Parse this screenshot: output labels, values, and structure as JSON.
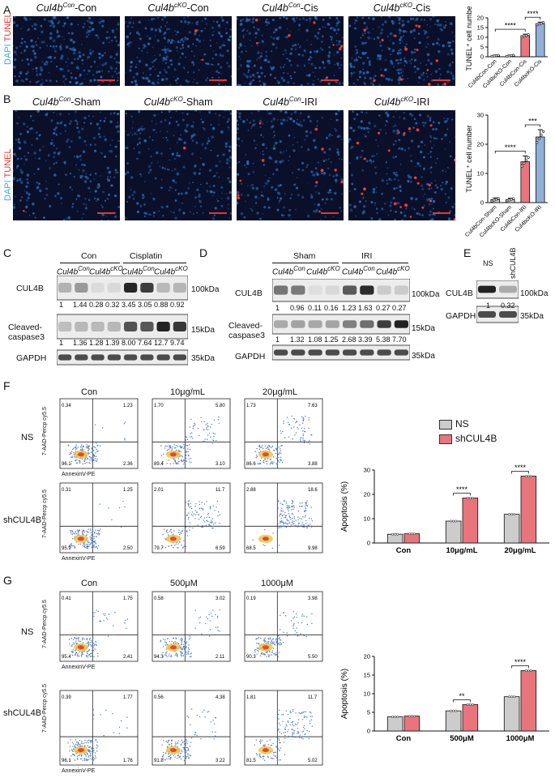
{
  "panels": {
    "A": "A",
    "B": "B",
    "C": "C",
    "D": "D",
    "E": "E",
    "F": "F",
    "G": "G"
  },
  "channels": {
    "dapi": "DAPI",
    "tunel": "TUNEL"
  },
  "panelA": {
    "titles": [
      {
        "base": "Cul4b",
        "sup": "Con",
        "suffix": "-Con"
      },
      {
        "base": "Cul4b",
        "sup": "cKO",
        "suffix": "-Con"
      },
      {
        "base": "Cul4b",
        "sup": "Con",
        "suffix": "-Cis"
      },
      {
        "base": "Cul4b",
        "sup": "cKO",
        "suffix": "-Cis"
      }
    ]
  },
  "panelB": {
    "titles": [
      {
        "base": "Cul4b",
        "sup": "Con",
        "suffix": "-Sham"
      },
      {
        "base": "Cul4b",
        "sup": "cKO",
        "suffix": "-Sham"
      },
      {
        "base": "Cul4b",
        "sup": "Con",
        "suffix": "-IRI"
      },
      {
        "base": "Cul4b",
        "sup": "cKO",
        "suffix": "-IRI"
      }
    ]
  },
  "chart_data": [
    {
      "type": "bar",
      "panel": "A",
      "ylabel": "TUNEL⁺ cell number",
      "ylim": [
        0,
        20
      ],
      "yticks": [
        0,
        5,
        10,
        15,
        20
      ],
      "categories": [
        "Cul4bCon-Con",
        "Cul4bcKO-Con",
        "Cul4bCon-Cis",
        "Cul4bcKO-Cis"
      ],
      "values": [
        0.5,
        0.5,
        10.8,
        17.0
      ],
      "errors": [
        0.3,
        0.4,
        0.8,
        0.8
      ],
      "colors": [
        "#cccccc",
        "#cccccc",
        "#e8747c",
        "#8fb0d8"
      ],
      "sig": [
        {
          "from": 0,
          "to": 2,
          "label": "****"
        },
        {
          "from": 2,
          "to": 3,
          "label": "****"
        }
      ]
    },
    {
      "type": "bar",
      "panel": "B",
      "ylabel": "TUNEL⁺ cell number",
      "ylim": [
        0,
        30
      ],
      "yticks": [
        0,
        10,
        20,
        30
      ],
      "categories": [
        "Cul4bCon-Sham",
        "Cul4bcKO-Sham",
        "Cul4bCon-IRI",
        "Cul4bcKO-IRI"
      ],
      "values": [
        1.0,
        1.0,
        14.0,
        22.5
      ],
      "errors": [
        0.6,
        0.5,
        2.0,
        2.5
      ],
      "colors": [
        "#cccccc",
        "#cccccc",
        "#e8747c",
        "#8fb0d8"
      ],
      "sig": [
        {
          "from": 0,
          "to": 2,
          "label": "****"
        },
        {
          "from": 2,
          "to": 3,
          "label": "***"
        }
      ]
    },
    {
      "type": "bar",
      "panel": "F",
      "ylabel": "Apoptosis (%)",
      "ylim": [
        0,
        30
      ],
      "yticks": [
        0,
        10,
        20,
        30
      ],
      "categories": [
        "Con",
        "10μg/mL",
        "20μg/mL"
      ],
      "series": [
        {
          "name": "NS",
          "values": [
            3.6,
            9.0,
            11.8
          ],
          "color": "#cccccc"
        },
        {
          "name": "shCUL4B",
          "values": [
            3.8,
            18.5,
            27.5
          ],
          "color": "#e8747c"
        }
      ],
      "sig": [
        {
          "cat": 1,
          "label": "****"
        },
        {
          "cat": 2,
          "label": "****"
        }
      ]
    },
    {
      "type": "bar",
      "panel": "G",
      "ylabel": "Apoptosis (%)",
      "ylim": [
        0,
        20
      ],
      "yticks": [
        0,
        5,
        10,
        15,
        20
      ],
      "categories": [
        "Con",
        "500μM",
        "1000μM"
      ],
      "series": [
        {
          "name": "NS",
          "values": [
            3.8,
            5.4,
            9.2
          ],
          "color": "#cccccc"
        },
        {
          "name": "shCUL4B",
          "values": [
            4.0,
            7.1,
            16.2
          ],
          "color": "#e8747c"
        }
      ],
      "sig": [
        {
          "cat": 1,
          "label": "**"
        },
        {
          "cat": 2,
          "label": "****"
        }
      ]
    }
  ],
  "panelC": {
    "groups": [
      "Con",
      "Cisplatin"
    ],
    "sub": [
      {
        "base": "Cul4b",
        "sup": "Con"
      },
      {
        "base": "Cul4b",
        "sup": "cKO"
      },
      {
        "base": "Cul4b",
        "sup": "Con"
      },
      {
        "base": "Cul4b",
        "sup": "cKO"
      }
    ],
    "rows": [
      "CUL4B",
      "Cleaved-\ncaspase3",
      "GAPDH"
    ],
    "kda": [
      "100kDa",
      "15kDa",
      "35kDa"
    ],
    "q1": [
      "1",
      "1.44",
      "0.28",
      "0.32",
      "3.45",
      "3.05",
      "0.88",
      "0.92"
    ],
    "q2": [
      "1",
      "1.36",
      "1.28",
      "1.39",
      "8.00",
      "7.64",
      "12.7",
      "9.74"
    ]
  },
  "panelD": {
    "groups": [
      "Sham",
      "IRI"
    ],
    "sub": [
      {
        "base": "Cul4b",
        "sup": "Con"
      },
      {
        "base": "Cul4b",
        "sup": "cKO"
      },
      {
        "base": "Cul4b",
        "sup": "Con"
      },
      {
        "base": "Cul4b",
        "sup": "cKO"
      }
    ],
    "rows": [
      "CUL4B",
      "Cleaved-\ncaspase3",
      "GAPDH"
    ],
    "kda": [
      "100kDa",
      "15kDa",
      "35kDa"
    ],
    "q1": [
      "1",
      "0.96",
      "0.11",
      "0.16",
      "1.23",
      "1.63",
      "0.27",
      "0.27"
    ],
    "q2": [
      "1",
      "1.32",
      "1.08",
      "1.25",
      "2.68",
      "3.39",
      "5.38",
      "7.70"
    ]
  },
  "panelE": {
    "lanes": [
      "NS",
      "shCUL4B"
    ],
    "rows": [
      "CUL4B",
      "GAPDH"
    ],
    "kda": [
      "100kDa",
      "35kDa"
    ],
    "q1": [
      "1",
      "0.32"
    ]
  },
  "panelF": {
    "cols": [
      "Con",
      "10μg/mL",
      "20μg/mL"
    ],
    "rows": [
      "NS",
      "shCUL4B"
    ],
    "xaxis": "AnnexinV-PE",
    "yaxis": "7-AAD-Percp cy5.5",
    "quads": [
      [
        [
          "0.34",
          "1.23",
          "96.1",
          "2.36"
        ],
        [
          "1.70",
          "5.80",
          "89.4",
          "3.10"
        ],
        [
          "1.73",
          "7.63",
          "86.6",
          "3.88"
        ]
      ],
      [
        [
          "0.31",
          "1.25",
          "95.9",
          "2.50"
        ],
        [
          "2.01",
          "11.7",
          "79.7",
          "6.59"
        ],
        [
          "2.88",
          "18.6",
          "68.5",
          "9.98"
        ]
      ]
    ]
  },
  "panelG": {
    "cols": [
      "Con",
      "500μM",
      "1000μM"
    ],
    "rows": [
      "NS",
      "shCUL4B"
    ],
    "xaxis": "AnnexinV-PE",
    "yaxis": "7-AAD-Percp cy5.5",
    "quads": [
      [
        [
          "0.41",
          "1.75",
          "95.4",
          "2.41"
        ],
        [
          "0.58",
          "3.02",
          "94.3",
          "2.11"
        ],
        [
          "0.19",
          "3.98",
          "90.3",
          "5.50"
        ]
      ],
      [
        [
          "0.39",
          "1.77",
          "96.1",
          "1.76"
        ],
        [
          "0.56",
          "4.38",
          "91.8",
          "3.22"
        ],
        [
          "1.81",
          "11.7",
          "81.5",
          "5.02"
        ]
      ]
    ]
  },
  "legend": {
    "ns": "NS",
    "sh": "shCUL4B"
  },
  "colors": {
    "tunel": "#e03a2f",
    "dapi": "#3fa8e0",
    "gray": "#cccccc",
    "red": "#e8747c",
    "blue": "#8fb0d8"
  }
}
